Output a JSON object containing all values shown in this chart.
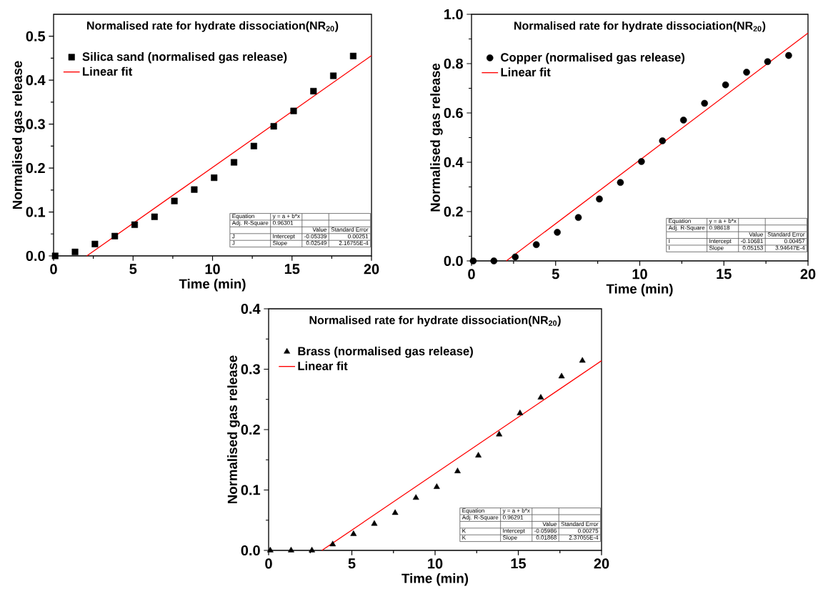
{
  "chart_data": [
    {
      "type": "scatter",
      "title": "Normalised rate for hydrate dissociation(NR$_{20}$)",
      "xlabel": "Time (min)",
      "ylabel": "Normalised gas release",
      "xlim": [
        0,
        20
      ],
      "ylim": [
        0,
        0.55
      ],
      "xticks": [
        0,
        5,
        10,
        15,
        20
      ],
      "yticks": [
        {
          "value": 0,
          "label": "0.0"
        },
        {
          "value": 0.1,
          "label": "0.1"
        },
        {
          "value": 0.2,
          "label": "0.2"
        },
        {
          "value": 0.3,
          "label": "0.3"
        },
        {
          "value": 0.4,
          "label": "0.4"
        },
        {
          "value": 0.5,
          "label": "0.5"
        }
      ],
      "grid": false,
      "legend": "top left",
      "series": [
        {
          "name": "Silica sand (normalised gas release)",
          "marker": "square",
          "color": "#000000",
          "x": [
            0.1,
            1.35,
            2.6,
            3.85,
            5.1,
            6.35,
            7.6,
            8.85,
            10.1,
            11.35,
            12.6,
            13.85,
            15.1,
            16.35,
            17.6,
            18.85
          ],
          "values": [
            0.0,
            0.009,
            0.027,
            0.045,
            0.071,
            0.089,
            0.125,
            0.151,
            0.178,
            0.213,
            0.25,
            0.295,
            0.33,
            0.375,
            0.41,
            0.455
          ]
        },
        {
          "name": "Linear fit",
          "type": "line",
          "line_style": "solid",
          "color": "#ff0000",
          "x": [
            2.09,
            20
          ],
          "values": [
            0.0,
            0.456
          ]
        }
      ],
      "annotations": [
        "Equation",
        "y = a + b*x",
        "Adj. R-Square",
        "0.96301",
        "Value",
        "Standard Error",
        "J",
        "Intercept",
        "-0.05339",
        "0.00251",
        "J",
        "Slope",
        "0.02549",
        "2.16755E-4"
      ]
    },
    {
      "type": "scatter",
      "title": "Normalised rate for hydrate dissociation(NR$_{20}$)",
      "xlabel": "Time (min)",
      "ylabel": "Normalised gas release",
      "xlim": [
        0,
        20
      ],
      "ylim": [
        0,
        1.0
      ],
      "xticks": [
        0,
        5,
        10,
        15,
        20
      ],
      "yticks": [
        {
          "value": 0,
          "label": "0.0"
        },
        {
          "value": 0.2,
          "label": "0.2"
        },
        {
          "value": 0.4,
          "label": "0.4"
        },
        {
          "value": 0.6,
          "label": "0.6"
        },
        {
          "value": 0.8,
          "label": "0.8"
        },
        {
          "value": 1.0,
          "label": "1.0"
        }
      ],
      "grid": false,
      "legend": "top left",
      "series": [
        {
          "name": "Copper (normalised gas release)",
          "marker": "circle",
          "color": "#000000",
          "x": [
            0.1,
            1.33,
            2.6,
            3.85,
            5.1,
            6.35,
            7.6,
            8.85,
            10.1,
            11.35,
            12.6,
            13.85,
            15.1,
            16.35,
            17.6,
            18.85
          ],
          "values": [
            0.0,
            0.0,
            0.016,
            0.066,
            0.116,
            0.176,
            0.251,
            0.318,
            0.403,
            0.487,
            0.571,
            0.639,
            0.714,
            0.765,
            0.808,
            0.833
          ]
        },
        {
          "name": "Linear fit",
          "type": "line",
          "line_style": "solid",
          "color": "#ff0000",
          "x": [
            2.07,
            20
          ],
          "values": [
            0.0,
            0.924
          ]
        }
      ],
      "annotations": [
        "Equation",
        "y = a + b*x",
        "Adj. R-Square",
        "0.98618",
        "Value",
        "Standard Error",
        "I",
        "Intercept",
        "-0.10681",
        "0.00457",
        "I",
        "Slope",
        "0.05153",
        "3.94647E-4"
      ]
    },
    {
      "type": "scatter",
      "title": "Normalised rate for hydrate dissociation(NR$_{20}$)",
      "xlabel": "Time (min)",
      "ylabel": "Normalised gas release",
      "xlim": [
        0,
        20
      ],
      "ylim": [
        0,
        0.4
      ],
      "xticks": [
        0,
        5,
        10,
        15,
        20
      ],
      "yticks": [
        {
          "value": 0,
          "label": "0.0"
        },
        {
          "value": 0.1,
          "label": "0.1"
        },
        {
          "value": 0.2,
          "label": "0.2"
        },
        {
          "value": 0.3,
          "label": "0.3"
        },
        {
          "value": 0.4,
          "label": "0.4"
        }
      ],
      "grid": false,
      "legend": "top left",
      "series": [
        {
          "name": "Brass (normalised gas release)",
          "marker": "triangle",
          "color": "#000000",
          "x": [
            0.1,
            1.35,
            2.6,
            3.85,
            5.1,
            6.35,
            7.6,
            8.85,
            10.1,
            11.35,
            12.6,
            13.85,
            15.1,
            16.35,
            17.6,
            18.85
          ],
          "values": [
            0.0,
            0.0,
            0.0,
            0.01,
            0.027,
            0.044,
            0.062,
            0.087,
            0.105,
            0.131,
            0.157,
            0.192,
            0.227,
            0.253,
            0.288,
            0.314
          ]
        },
        {
          "name": "Linear fit",
          "type": "line",
          "line_style": "solid",
          "color": "#ff0000",
          "x": [
            3.2,
            20
          ],
          "values": [
            0.0,
            0.314
          ]
        }
      ],
      "annotations": [
        "Equation",
        "y = a + b*x",
        "Adj. R-Square",
        "0.96291",
        "Value",
        "Standard Error",
        "K",
        "Intercept",
        "-0.05986",
        "0.00275",
        "K",
        "Slope",
        "0.01868",
        "2.37055E-4"
      ]
    }
  ]
}
